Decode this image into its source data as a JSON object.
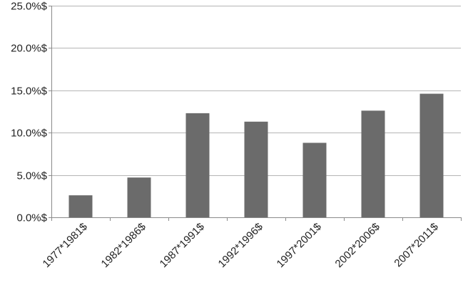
{
  "chart_data": {
    "type": "bar",
    "title": "",
    "xlabel": "",
    "ylabel": "",
    "categories": [
      "1977*1981$",
      "1982*1986$",
      "1987*1991$",
      "1992*1996$",
      "1997*2001$",
      "2002*2006$",
      "2007*2011$"
    ],
    "values": [
      2.6,
      4.7,
      12.3,
      11.3,
      8.8,
      12.6,
      14.6
    ],
    "ylim": [
      0,
      25
    ],
    "yticks": [
      0,
      5,
      10,
      15,
      20,
      25
    ],
    "ytick_labels": [
      "0.0%$",
      "5.0%$",
      "10.0%$",
      "15.0%$",
      "20.0%$",
      "25.0%$"
    ],
    "grid": true,
    "bar_color": "#6b6b6b",
    "legend": "none"
  }
}
